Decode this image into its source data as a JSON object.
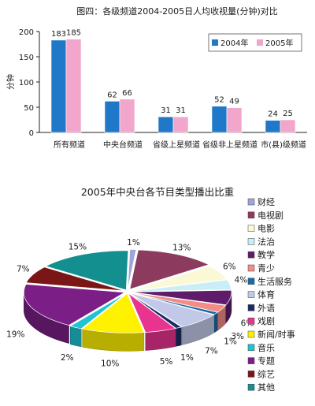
{
  "chart_data": [
    {
      "type": "bar",
      "title": "图四：各级频道2004-2005日人均收视量(分钟)对比",
      "ylabel": "分钟",
      "ylim": [
        0,
        200
      ],
      "yticks": [
        0,
        50,
        100,
        150,
        200
      ],
      "categories": [
        "所有频道",
        "中央台频道",
        "省级上星频道",
        "省级非上星频道",
        "市(县)级频道"
      ],
      "series": [
        {
          "name": "2004年",
          "color": "#1f78c8",
          "values": [
            183,
            62,
            31,
            52,
            24
          ]
        },
        {
          "name": "2005年",
          "color": "#f2a6cc",
          "values": [
            185,
            66,
            31,
            49,
            25
          ]
        }
      ],
      "legend": "top-right",
      "grid": false
    },
    {
      "type": "pie",
      "title": "2005年中央台各节目类型播出比重",
      "legend": "right",
      "slices": [
        {
          "name": "财经",
          "value": 1,
          "label": "1%",
          "color": "#9da6d6"
        },
        {
          "name": "电视剧",
          "value": 13,
          "label": "13%",
          "color": "#8c3b5e"
        },
        {
          "name": "电影",
          "value": 6,
          "label": "6%",
          "color": "#fbf8d5"
        },
        {
          "name": "法治",
          "value": 4,
          "label": "4%",
          "color": "#c9eef7"
        },
        {
          "name": "教学",
          "value": 6,
          "label": "6%",
          "color": "#5f1c6b"
        },
        {
          "name": "青少",
          "value": 3,
          "label": "3%",
          "color": "#f28c86"
        },
        {
          "name": "生活服务",
          "value": 1,
          "label": "1%",
          "color": "#1a6aa8"
        },
        {
          "name": "体育",
          "value": 7,
          "label": "7%",
          "color": "#c2c9e8"
        },
        {
          "name": "外语",
          "value": 1,
          "label": "1%",
          "color": "#1c2a66"
        },
        {
          "name": "戏剧",
          "value": 5,
          "label": "5%",
          "color": "#e8338f"
        },
        {
          "name": "新闻/时事",
          "value": 10,
          "label": "10%",
          "color": "#fff200"
        },
        {
          "name": "音乐",
          "value": 2,
          "label": "2%",
          "color": "#20c3d0"
        },
        {
          "name": "专题",
          "value": 19,
          "label": "19%",
          "color": "#7b1e86"
        },
        {
          "name": "综艺",
          "value": 7,
          "label": "7%",
          "color": "#7a1616"
        },
        {
          "name": "其他",
          "value": 15,
          "label": "15%",
          "color": "#148f8f"
        }
      ]
    }
  ]
}
